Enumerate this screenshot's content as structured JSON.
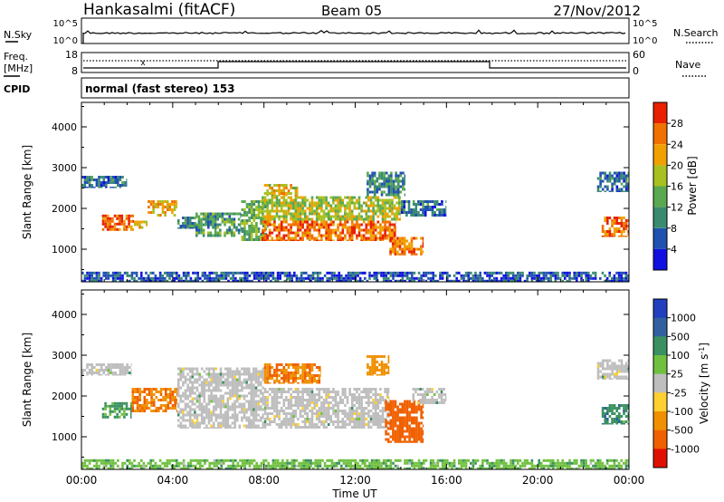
{
  "header": {
    "station": "Hankasalmi (fitACF)",
    "beam": "Beam 05",
    "date": "27/Nov/2012"
  },
  "strip_panels": {
    "nsky": {
      "label": "N.Sky",
      "tick_top": "10^5",
      "tick_bottom": "10^0",
      "right_label": "N.Search",
      "right_tick_top": "10^5",
      "right_tick_bottom": "10^0"
    },
    "freq": {
      "label_line1": "Freq.",
      "label_line2": "[MHz]",
      "tick_top": "18",
      "tick_bottom": "8",
      "right_label": "Nave",
      "right_tick_top": "60",
      "right_tick_bottom": "0"
    },
    "cpid": {
      "label": "CPID",
      "text": "normal (fast stereo) 153"
    }
  },
  "chart_data": [
    {
      "type": "heatmap",
      "title": "",
      "xlabel": "Time UT",
      "ylabel": "Slant Range [km]",
      "xlim": [
        0,
        24
      ],
      "ylim": [
        200,
        4600
      ],
      "x_ticks": [
        "00:00",
        "04:00",
        "08:00",
        "12:00",
        "16:00",
        "20:00",
        "00:00"
      ],
      "y_ticks": [
        1000,
        2000,
        3000,
        4000
      ],
      "colorbar": {
        "label": "Power [dB]",
        "range": [
          0,
          32
        ],
        "ticks": [
          4,
          8,
          12,
          16,
          20,
          24,
          28
        ],
        "colors": [
          "#1010e0",
          "#2050b0",
          "#3a8a70",
          "#5aa850",
          "#a8c020",
          "#f0a000",
          "#f07000",
          "#e82000"
        ]
      },
      "regions": [
        {
          "t0": 0.0,
          "t1": 2.0,
          "r0": 2500,
          "r1": 2800,
          "value": 8
        },
        {
          "t0": 0.9,
          "t1": 2.3,
          "r0": 1450,
          "r1": 1850,
          "value": 26
        },
        {
          "t0": 2.3,
          "t1": 2.9,
          "r0": 1500,
          "r1": 1700,
          "value": 22
        },
        {
          "t0": 2.9,
          "t1": 4.2,
          "r0": 1800,
          "r1": 2200,
          "value": 22
        },
        {
          "t0": 4.2,
          "t1": 5.2,
          "r0": 1500,
          "r1": 1800,
          "value": 10
        },
        {
          "t0": 5.0,
          "t1": 7.0,
          "r0": 1300,
          "r1": 1900,
          "value": 12
        },
        {
          "t0": 7.0,
          "t1": 8.2,
          "r0": 1200,
          "r1": 2200,
          "value": 14
        },
        {
          "t0": 7.9,
          "t1": 13.8,
          "r0": 1200,
          "r1": 1700,
          "value": 26
        },
        {
          "t0": 7.9,
          "t1": 14.0,
          "r0": 1700,
          "r1": 2300,
          "value": 18
        },
        {
          "t0": 8.0,
          "t1": 9.5,
          "r0": 2300,
          "r1": 2600,
          "value": 20
        },
        {
          "t0": 12.5,
          "t1": 14.2,
          "r0": 2300,
          "r1": 2900,
          "value": 10
        },
        {
          "t0": 13.5,
          "t1": 15.0,
          "r0": 850,
          "r1": 1300,
          "value": 26
        },
        {
          "t0": 14.0,
          "t1": 16.0,
          "r0": 1800,
          "r1": 2200,
          "value": 8
        },
        {
          "t0": 22.8,
          "t1": 24.0,
          "r0": 1300,
          "r1": 1800,
          "value": 26
        },
        {
          "t0": 22.6,
          "t1": 24.0,
          "r0": 2400,
          "r1": 2900,
          "value": 8
        },
        {
          "t0": 0.0,
          "t1": 24.0,
          "r0": 200,
          "r1": 450,
          "value": 6
        }
      ]
    },
    {
      "type": "heatmap",
      "title": "",
      "xlabel": "Time UT",
      "ylabel": "Slant Range [km]",
      "xlim": [
        0,
        24
      ],
      "ylim": [
        200,
        4600
      ],
      "x_ticks": [
        "00:00",
        "04:00",
        "08:00",
        "12:00",
        "16:00",
        "20:00",
        "00:00"
      ],
      "y_ticks": [
        1000,
        2000,
        3000,
        4000
      ],
      "colorbar": {
        "label": "Velocity [m s^-1]",
        "ticks": [
          "1000",
          "500",
          "100",
          "25",
          "-25",
          "-100",
          "-500",
          "-1000"
        ],
        "colors": [
          "#2040c0",
          "#3060a0",
          "#3a9060",
          "#70c040",
          "#bebebe",
          "#ffd030",
          "#f09000",
          "#f06000",
          "#e01000"
        ]
      },
      "regions": [
        {
          "t0": 0.0,
          "t1": 2.2,
          "r0": 2500,
          "r1": 2800,
          "value": 0
        },
        {
          "t0": 0.9,
          "t1": 2.2,
          "r0": 1450,
          "r1": 1850,
          "value": 60
        },
        {
          "t0": 2.2,
          "t1": 4.2,
          "r0": 1600,
          "r1": 2200,
          "value": -300
        },
        {
          "t0": 4.2,
          "t1": 8.0,
          "r0": 1200,
          "r1": 2700,
          "value": 0
        },
        {
          "t0": 8.0,
          "t1": 13.5,
          "r0": 1200,
          "r1": 2200,
          "value": 0
        },
        {
          "t0": 8.0,
          "t1": 10.5,
          "r0": 2300,
          "r1": 2800,
          "value": -300
        },
        {
          "t0": 12.5,
          "t1": 13.5,
          "r0": 2500,
          "r1": 3000,
          "value": -200
        },
        {
          "t0": 13.3,
          "t1": 15.0,
          "r0": 850,
          "r1": 1900,
          "value": -500
        },
        {
          "t0": 14.5,
          "t1": 16.0,
          "r0": 1800,
          "r1": 2200,
          "value": 0
        },
        {
          "t0": 22.6,
          "t1": 24.0,
          "r0": 2400,
          "r1": 2900,
          "value": 0
        },
        {
          "t0": 22.8,
          "t1": 24.0,
          "r0": 1300,
          "r1": 1800,
          "value": 80
        },
        {
          "t0": 0.0,
          "t1": 24.0,
          "r0": 200,
          "r1": 450,
          "value": 40
        }
      ]
    }
  ]
}
